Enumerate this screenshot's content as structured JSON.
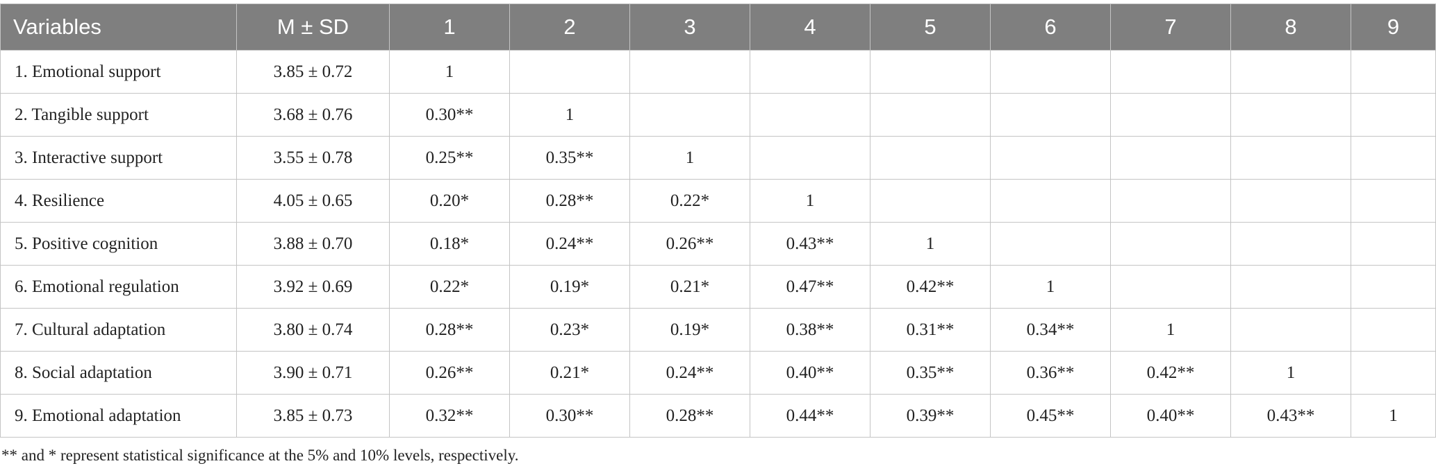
{
  "table": {
    "header": [
      "Variables",
      "M ± SD",
      "1",
      "2",
      "3",
      "4",
      "5",
      "6",
      "7",
      "8",
      "9"
    ],
    "rows": [
      [
        "1. Emotional support",
        "3.85 ± 0.72",
        "1",
        null,
        null,
        null,
        null,
        null,
        null,
        null,
        null
      ],
      [
        "2. Tangible support",
        "3.68 ± 0.76",
        "0.30**",
        "1",
        null,
        null,
        null,
        null,
        null,
        null,
        null
      ],
      [
        "3. Interactive support",
        "3.55 ± 0.78",
        "0.25**",
        "0.35**",
        "1",
        null,
        null,
        null,
        null,
        null,
        null
      ],
      [
        "4. Resilience",
        "4.05 ± 0.65",
        "0.20*",
        "0.28**",
        "0.22*",
        "1",
        null,
        null,
        null,
        null,
        null
      ],
      [
        "5. Positive cognition",
        "3.88 ± 0.70",
        "0.18*",
        "0.24**",
        "0.26**",
        "0.43**",
        "1",
        null,
        null,
        null,
        null
      ],
      [
        "6. Emotional regulation",
        "3.92 ± 0.69",
        "0.22*",
        "0.19*",
        "0.21*",
        "0.47**",
        "0.42**",
        "1",
        null,
        null,
        null
      ],
      [
        "7. Cultural adaptation",
        "3.80 ± 0.74",
        "0.28**",
        "0.23*",
        "0.19*",
        "0.38**",
        "0.31**",
        "0.34**",
        "1",
        null,
        null
      ],
      [
        "8. Social adaptation",
        "3.90 ± 0.71",
        "0.26**",
        "0.21*",
        "0.24**",
        "0.40**",
        "0.35**",
        "0.36**",
        "0.42**",
        "1",
        null
      ],
      [
        "9. Emotional adaptation",
        "3.85 ± 0.73",
        "0.32**",
        "0.30**",
        "0.28**",
        "0.44**",
        "0.39**",
        "0.45**",
        "0.40**",
        "0.43**",
        "1"
      ]
    ],
    "footnote": "** and * represent statistical significance at the 5% and 10% levels, respectively."
  }
}
